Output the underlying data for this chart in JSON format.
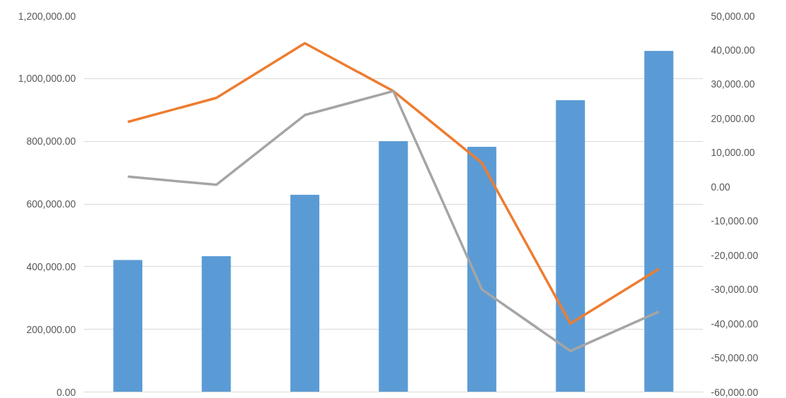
{
  "chart_data": {
    "type": "bar",
    "categories": [
      null,
      null,
      null,
      null,
      null,
      null,
      null
    ],
    "series": [
      {
        "color": "#5b9bd5",
        "values": [
          420000,
          432000,
          628000,
          799000,
          781000,
          930000,
          1087000
        ]
      },
      {
        "type": "line",
        "axis": "y2",
        "color": "#ed7d31",
        "values": [
          19000,
          26000,
          42000,
          28000,
          7000,
          -40000,
          -24000
        ]
      },
      {
        "type": "line",
        "axis": "y2",
        "color": "#a5a5a5",
        "values": [
          3000,
          600,
          21000,
          28000,
          -30000,
          -48000,
          -36500
        ]
      }
    ],
    "ylim": [
      0,
      1200000
    ],
    "yticks": [
      {
        "value": 0,
        "label": "0.00"
      },
      {
        "value": 200000,
        "label": "200,000.00"
      },
      {
        "value": 400000,
        "label": "400,000.00"
      },
      {
        "value": 600000,
        "label": "600,000.00"
      },
      {
        "value": 800000,
        "label": "800,000.00"
      },
      {
        "value": 1000000,
        "label": "1,000,000.00"
      },
      {
        "value": 1200000,
        "label": "1,200,000.00"
      }
    ],
    "y2lim": [
      -60000,
      50000
    ],
    "y2ticks": [
      {
        "value": -60000,
        "label": "-60,000.00"
      },
      {
        "value": -50000,
        "label": "-50,000.00"
      },
      {
        "value": -40000,
        "label": "-40,000.00"
      },
      {
        "value": -30000,
        "label": "-30,000.00"
      },
      {
        "value": -20000,
        "label": "-20,000.00"
      },
      {
        "value": -10000,
        "label": "-10,000.00"
      },
      {
        "value": 0,
        "label": "0.00"
      },
      {
        "value": 10000,
        "label": "10,000.00"
      },
      {
        "value": 20000,
        "label": "20,000.00"
      },
      {
        "value": 30000,
        "label": "30,000.00"
      },
      {
        "value": 40000,
        "label": "40,000.00"
      },
      {
        "value": 50000,
        "label": "50,000.00"
      }
    ],
    "grid": "y",
    "line_style": "solid",
    "marker": "none"
  }
}
